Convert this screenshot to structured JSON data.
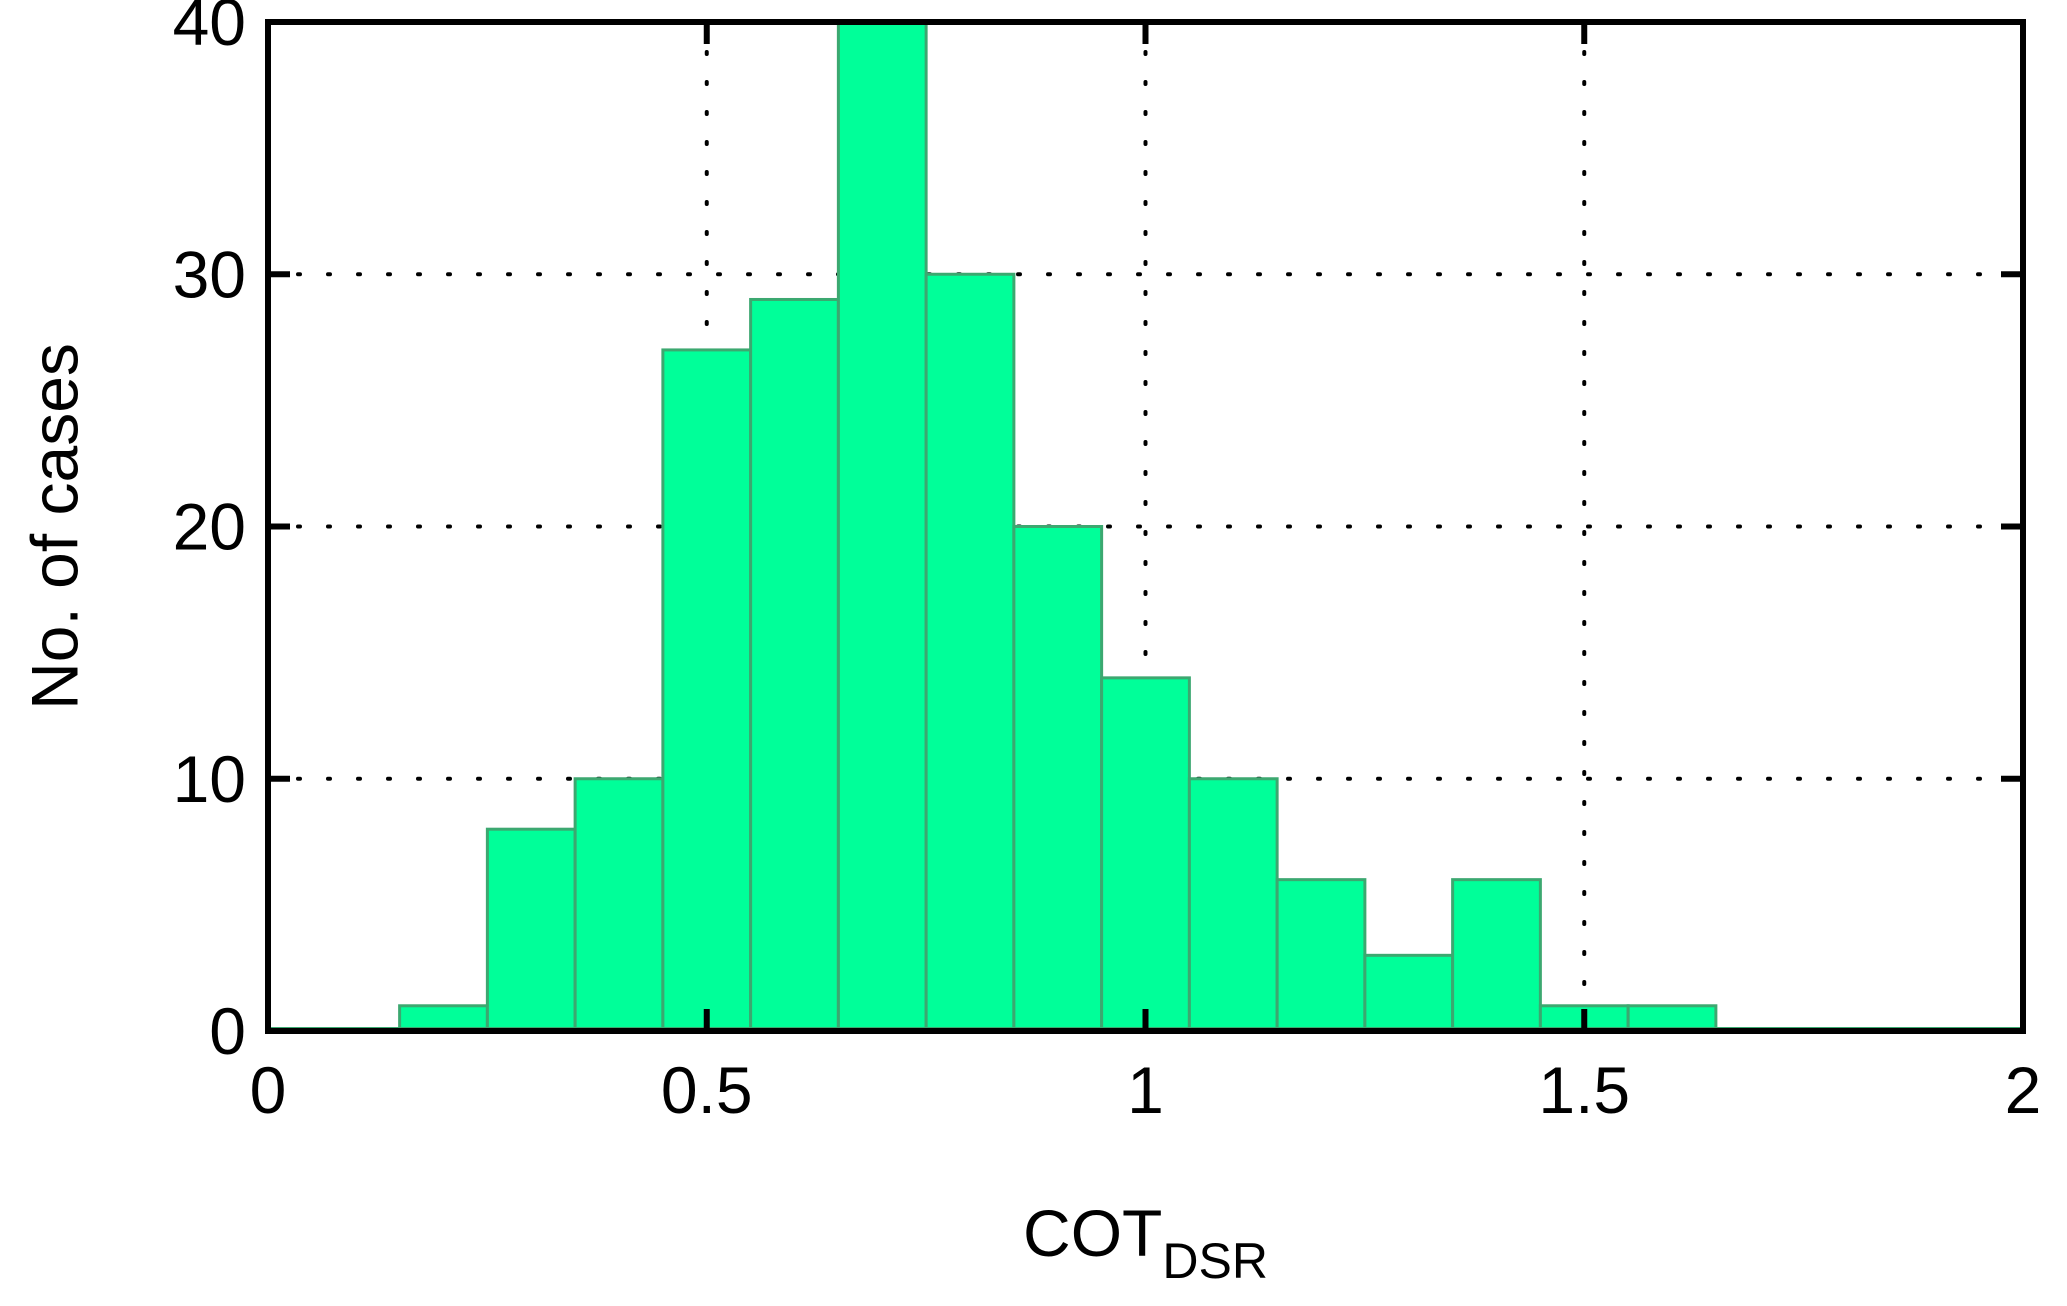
{
  "chart_data": {
    "type": "bar",
    "title": "",
    "xlabel": "COT",
    "xlabel_subscript": "DSR",
    "ylabel": "No. of cases",
    "xlim": [
      0,
      2
    ],
    "ylim": [
      0,
      40
    ],
    "x_ticks": [
      0,
      0.5,
      1,
      1.5,
      2
    ],
    "x_tick_labels": [
      "0",
      "0.5",
      "1",
      "1.5",
      "2"
    ],
    "y_ticks": [
      0,
      10,
      20,
      30,
      40
    ],
    "y_tick_labels": [
      "0",
      "10",
      "20",
      "30",
      "40"
    ],
    "grid": true,
    "grid_style": "dotted",
    "bar_color": "#00FF99",
    "bar_edge_color": "#3CA870",
    "bins": [
      {
        "x_start": 0.05,
        "x_end": 0.15,
        "value": 0
      },
      {
        "x_start": 0.15,
        "x_end": 0.25,
        "value": 1
      },
      {
        "x_start": 0.25,
        "x_end": 0.35,
        "value": 8
      },
      {
        "x_start": 0.35,
        "x_end": 0.45,
        "value": 10
      },
      {
        "x_start": 0.45,
        "x_end": 0.55,
        "value": 27
      },
      {
        "x_start": 0.55,
        "x_end": 0.65,
        "value": 29
      },
      {
        "x_start": 0.65,
        "x_end": 0.75,
        "value": 40
      },
      {
        "x_start": 0.75,
        "x_end": 0.85,
        "value": 30
      },
      {
        "x_start": 0.85,
        "x_end": 0.95,
        "value": 20
      },
      {
        "x_start": 0.95,
        "x_end": 1.05,
        "value": 14
      },
      {
        "x_start": 1.05,
        "x_end": 1.15,
        "value": 10
      },
      {
        "x_start": 1.15,
        "x_end": 1.25,
        "value": 6
      },
      {
        "x_start": 1.25,
        "x_end": 1.35,
        "value": 3
      },
      {
        "x_start": 1.35,
        "x_end": 1.45,
        "value": 6
      },
      {
        "x_start": 1.45,
        "x_end": 1.55,
        "value": 1
      },
      {
        "x_start": 1.55,
        "x_end": 1.65,
        "value": 1
      },
      {
        "x_start": 1.65,
        "x_end": 1.75,
        "value": 0
      },
      {
        "x_start": 1.75,
        "x_end": 1.85,
        "value": 0
      },
      {
        "x_start": 1.85,
        "x_end": 1.95,
        "value": 0
      }
    ]
  }
}
